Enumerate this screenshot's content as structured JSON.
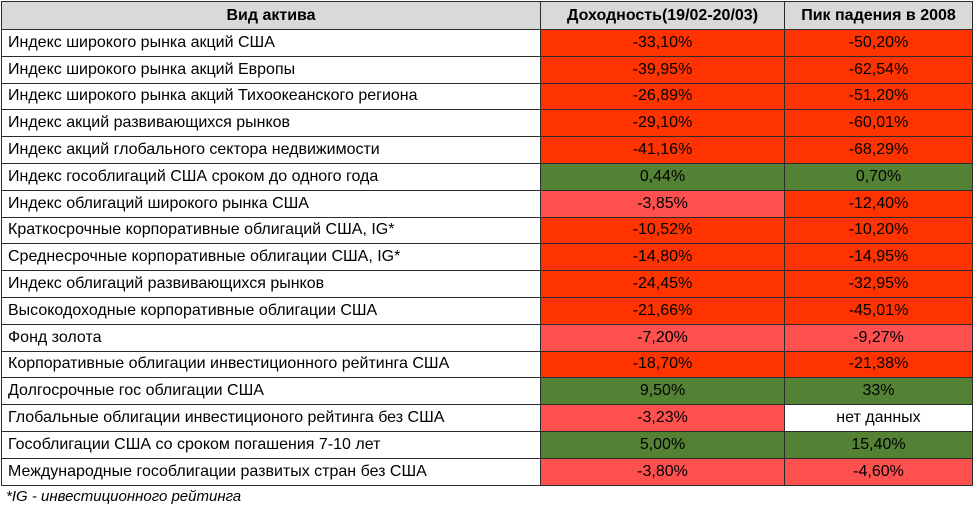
{
  "colors": {
    "header_bg": "#d9d9d9",
    "strong_red": "#ff3300",
    "light_red": "#ff5050",
    "green": "#548235",
    "white": "#ffffff"
  },
  "headers": {
    "asset": "Вид актива",
    "return": "Доходность(19/02-20/03)",
    "drawdown": "Пик падения в 2008"
  },
  "rows": [
    {
      "name": "Индекс широкого рынка акций США",
      "ret": "-33,10%",
      "ret_color": "strong_red",
      "dd": "-50,20%",
      "dd_color": "strong_red"
    },
    {
      "name": "Индекс широкого рынка акций Европы",
      "ret": "-39,95%",
      "ret_color": "strong_red",
      "dd": "-62,54%",
      "dd_color": "strong_red"
    },
    {
      "name": "Индекс широкого рынка акций Тихоокеанского региона",
      "ret": "-26,89%",
      "ret_color": "strong_red",
      "dd": "-51,20%",
      "dd_color": "strong_red"
    },
    {
      "name": "Индекс акций развивающихся рынков",
      "ret": "-29,10%",
      "ret_color": "strong_red",
      "dd": "-60,01%",
      "dd_color": "strong_red"
    },
    {
      "name": "Индекс акций глобального сектора недвижимости",
      "ret": "-41,16%",
      "ret_color": "strong_red",
      "dd": "-68,29%",
      "dd_color": "strong_red"
    },
    {
      "name": "Индекс гособлигаций США сроком до одного года",
      "ret": "0,44%",
      "ret_color": "green",
      "dd": "0,70%",
      "dd_color": "green"
    },
    {
      "name": "Индекс облигаций широкого рынка США",
      "ret": "-3,85%",
      "ret_color": "light_red",
      "dd": "-12,40%",
      "dd_color": "strong_red"
    },
    {
      "name": "Краткосрочные корпоративные облигаций США, IG*",
      "ret": "-10,52%",
      "ret_color": "strong_red",
      "dd": "-10,20%",
      "dd_color": "strong_red"
    },
    {
      "name": "Среднесрочные корпоративные облигации США, IG*",
      "ret": "-14,80%",
      "ret_color": "strong_red",
      "dd": "-14,95%",
      "dd_color": "strong_red"
    },
    {
      "name": "Индекс облигаций развивающихся рынков",
      "ret": "-24,45%",
      "ret_color": "strong_red",
      "dd": "-32,95%",
      "dd_color": "strong_red"
    },
    {
      "name": "Высокодоходные корпоративные облигации США",
      "ret": "-21,66%",
      "ret_color": "strong_red",
      "dd": "-45,01%",
      "dd_color": "strong_red"
    },
    {
      "name": "Фонд золота",
      "ret": "-7,20%",
      "ret_color": "light_red",
      "dd": "-9,27%",
      "dd_color": "light_red"
    },
    {
      "name": "Корпоративные облигации инвестиционного рейтинга США",
      "ret": "-18,70%",
      "ret_color": "strong_red",
      "dd": "-21,38%",
      "dd_color": "strong_red"
    },
    {
      "name": "Долгосрочные гос облигации США",
      "ret": "9,50%",
      "ret_color": "green",
      "dd": "33%",
      "dd_color": "green"
    },
    {
      "name": "Глобальные облигации инвестиционого рейтинга без США",
      "ret": "-3,23%",
      "ret_color": "light_red",
      "dd": "нет данных",
      "dd_color": "white"
    },
    {
      "name": "Гособлигации США со сроком погашения 7-10 лет",
      "ret": "5,00%",
      "ret_color": "green",
      "dd": "15,40%",
      "dd_color": "green"
    },
    {
      "name": "Международные гособлигации развитых стран без США",
      "ret": "-3,80%",
      "ret_color": "light_red",
      "dd": "-4,60%",
      "dd_color": "light_red"
    }
  ],
  "footnote": "*IG - инвестиционного рейтинга"
}
